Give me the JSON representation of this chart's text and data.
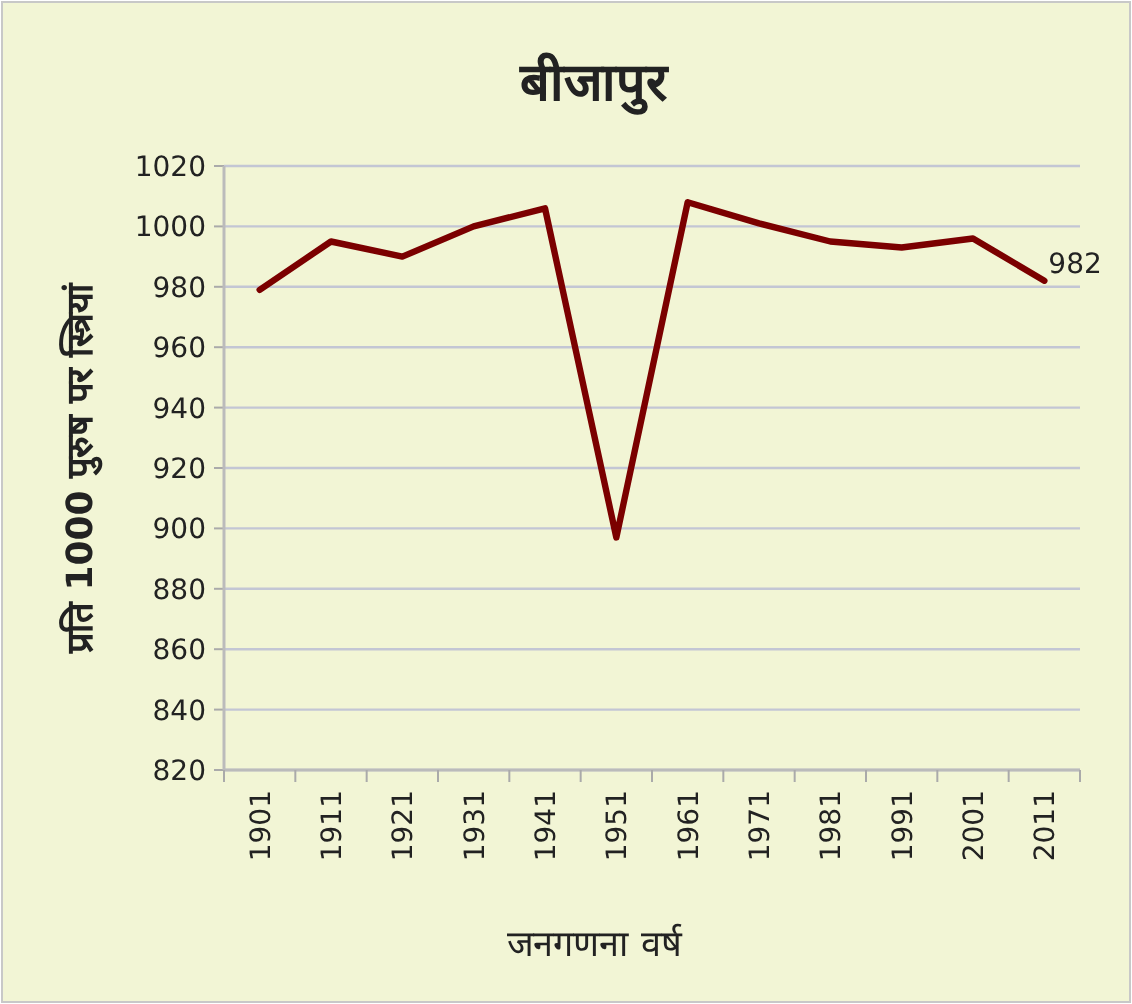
{
  "chart_data": {
    "type": "line",
    "title": "बीजापुर",
    "xlabel": "जनगणना वर्ष",
    "ylabel": "प्रति 1000 पुरुष पर स्त्रियां",
    "categories": [
      "1901",
      "1911",
      "1921",
      "1931",
      "1941",
      "1951",
      "1961",
      "1971",
      "1981",
      "1991",
      "2001",
      "2011"
    ],
    "series": [
      {
        "color": "#7b0000",
        "values": [
          979,
          995,
          990,
          1000,
          1006,
          897,
          1008,
          1001,
          995,
          993,
          996,
          982
        ],
        "value_labels": [
          null,
          null,
          null,
          null,
          null,
          null,
          null,
          null,
          null,
          null,
          null,
          "982"
        ]
      }
    ],
    "ylim": [
      820,
      1020
    ],
    "yticks": [
      820,
      840,
      860,
      880,
      900,
      920,
      940,
      960,
      980,
      1000,
      1020
    ],
    "grid": "y",
    "marker": "none",
    "line_style": "solid"
  }
}
